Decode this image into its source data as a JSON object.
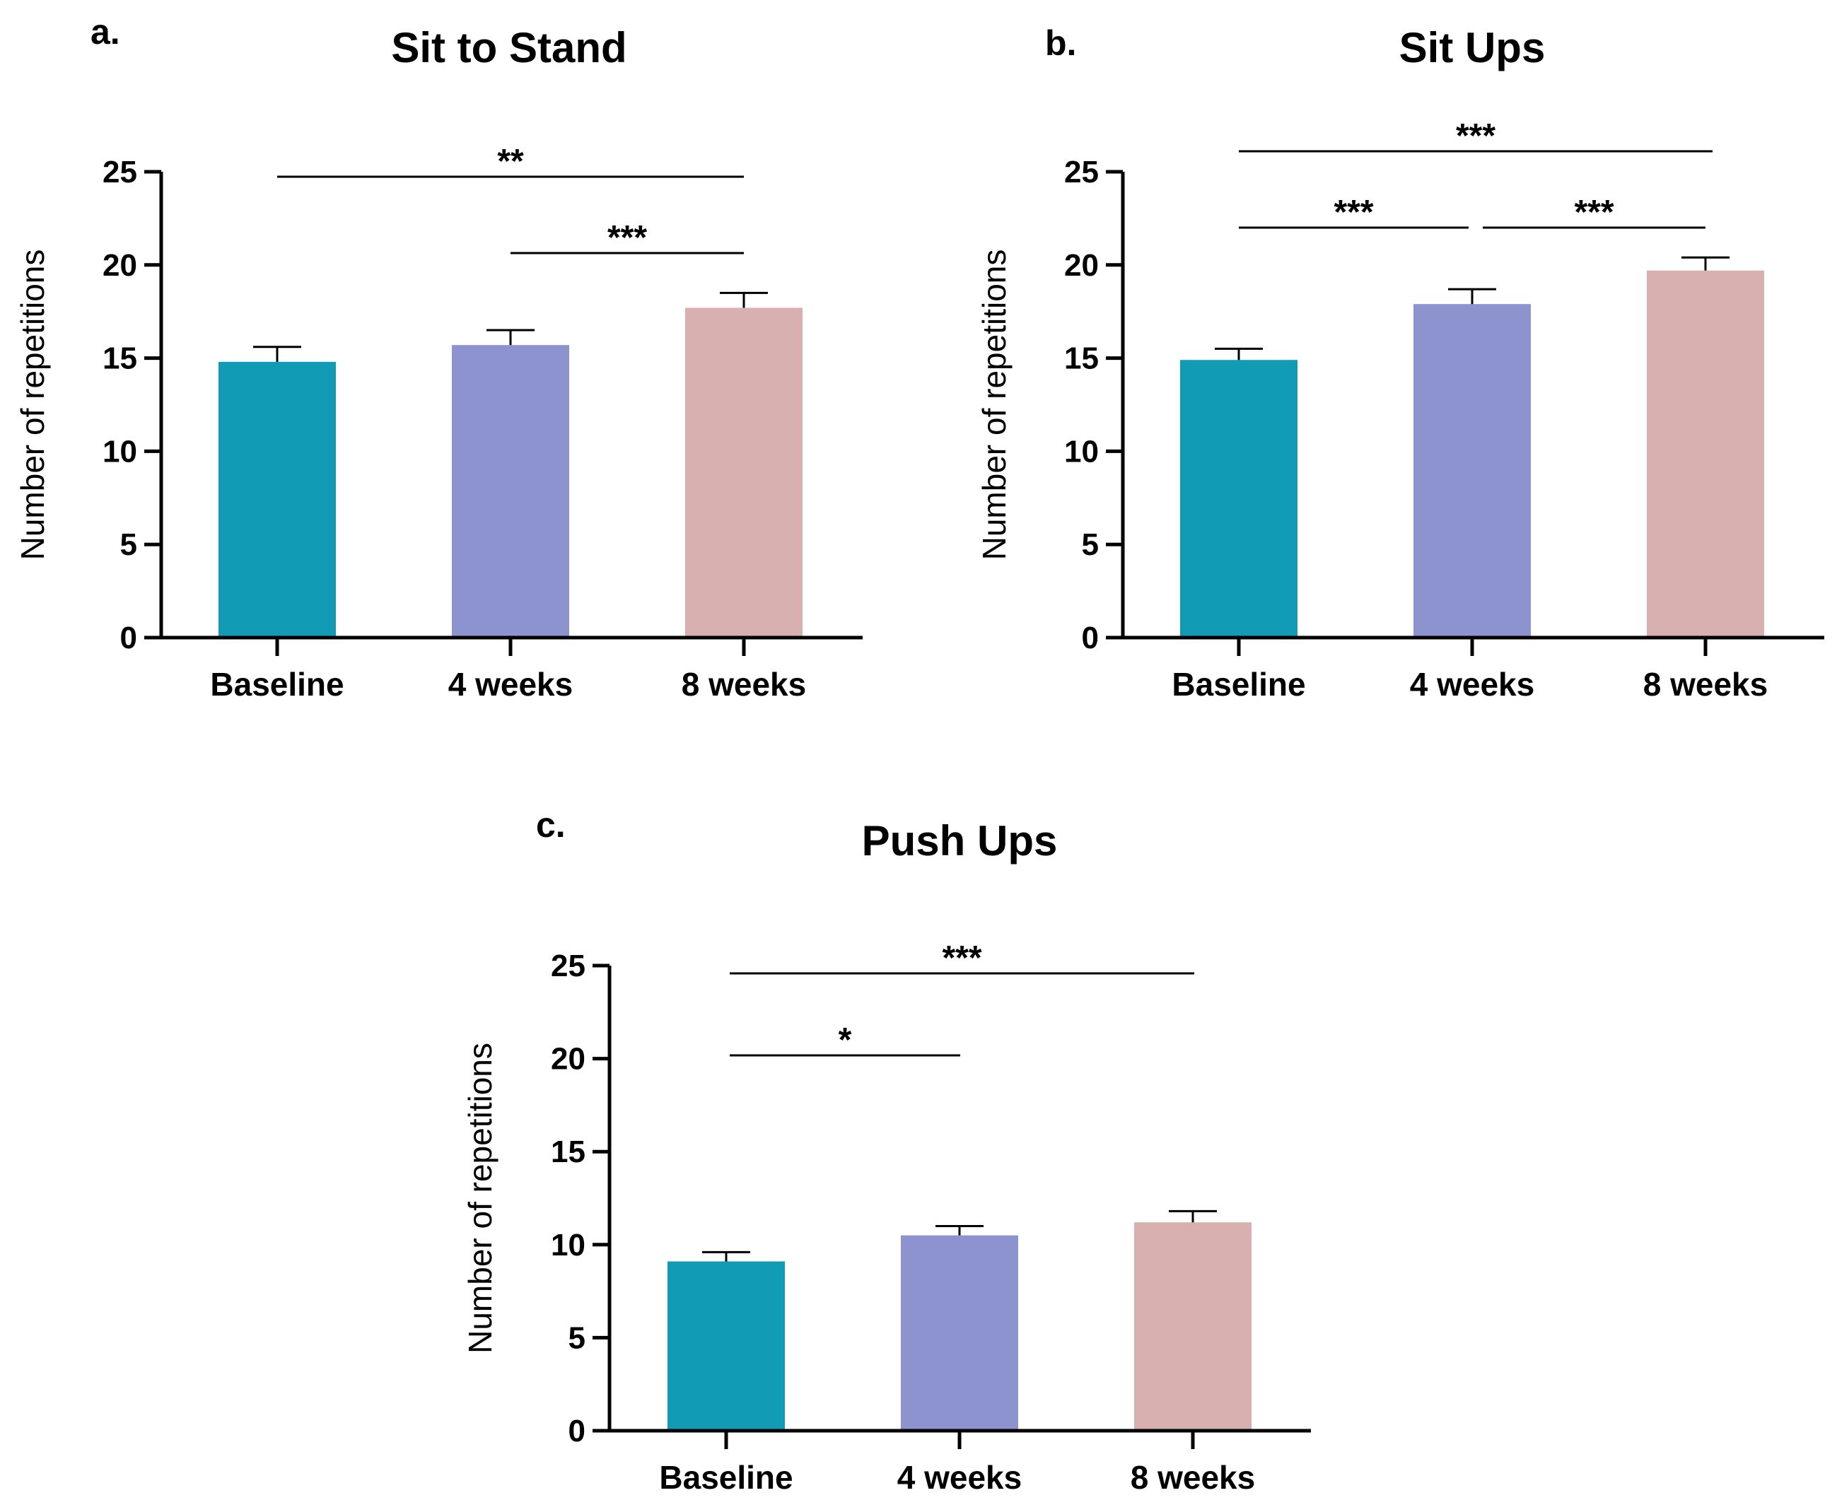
{
  "chart_data": [
    {
      "type": "bar",
      "panel": "a.",
      "title": "Sit to Stand",
      "categories": [
        "Baseline",
        "4 weeks",
        "8 weeks"
      ],
      "values": [
        14.8,
        15.7,
        17.7
      ],
      "errors": [
        0.8,
        0.8,
        0.8
      ],
      "colors": [
        "#129bb4",
        "#8c93cf",
        "#d8b0b0"
      ],
      "xlabel": "",
      "ylabel": "Number of repetitions",
      "ylim": [
        0,
        25
      ],
      "yticks": [
        "0",
        "5",
        "10",
        "15",
        "20",
        "25"
      ],
      "significance": [
        {
          "from": 0,
          "to": 2,
          "label": "**"
        },
        {
          "from": 1,
          "to": 2,
          "label": "***"
        }
      ]
    },
    {
      "type": "bar",
      "panel": "b.",
      "title": "Sit Ups",
      "categories": [
        "Baseline",
        "4 weeks",
        "8 weeks"
      ],
      "values": [
        14.9,
        17.9,
        19.7
      ],
      "errors": [
        0.6,
        0.8,
        0.7
      ],
      "colors": [
        "#129bb4",
        "#8c93cf",
        "#d8b0b0"
      ],
      "xlabel": "",
      "ylabel": "Number of repetitions",
      "ylim": [
        0,
        25
      ],
      "yticks": [
        "0",
        "5",
        "10",
        "15",
        "20",
        "25"
      ],
      "significance": [
        {
          "from": 0,
          "to": 2,
          "label": "***"
        },
        {
          "from": 0,
          "to": 1,
          "label": "***"
        },
        {
          "from": 1,
          "to": 2,
          "label": "***"
        }
      ]
    },
    {
      "type": "bar",
      "panel": "c.",
      "title": "Push Ups",
      "categories": [
        "Baseline",
        "4 weeks",
        "8 weeks"
      ],
      "values": [
        9.1,
        10.5,
        11.2
      ],
      "errors": [
        0.5,
        0.5,
        0.6
      ],
      "colors": [
        "#129bb4",
        "#8c93cf",
        "#d8b0b0"
      ],
      "xlabel": "",
      "ylabel": "Number of repetitions",
      "ylim": [
        0,
        25
      ],
      "yticks": [
        "0",
        "5",
        "10",
        "15",
        "20",
        "25"
      ],
      "significance": [
        {
          "from": 0,
          "to": 2,
          "label": "***"
        },
        {
          "from": 0,
          "to": 1,
          "label": "*"
        }
      ]
    }
  ]
}
